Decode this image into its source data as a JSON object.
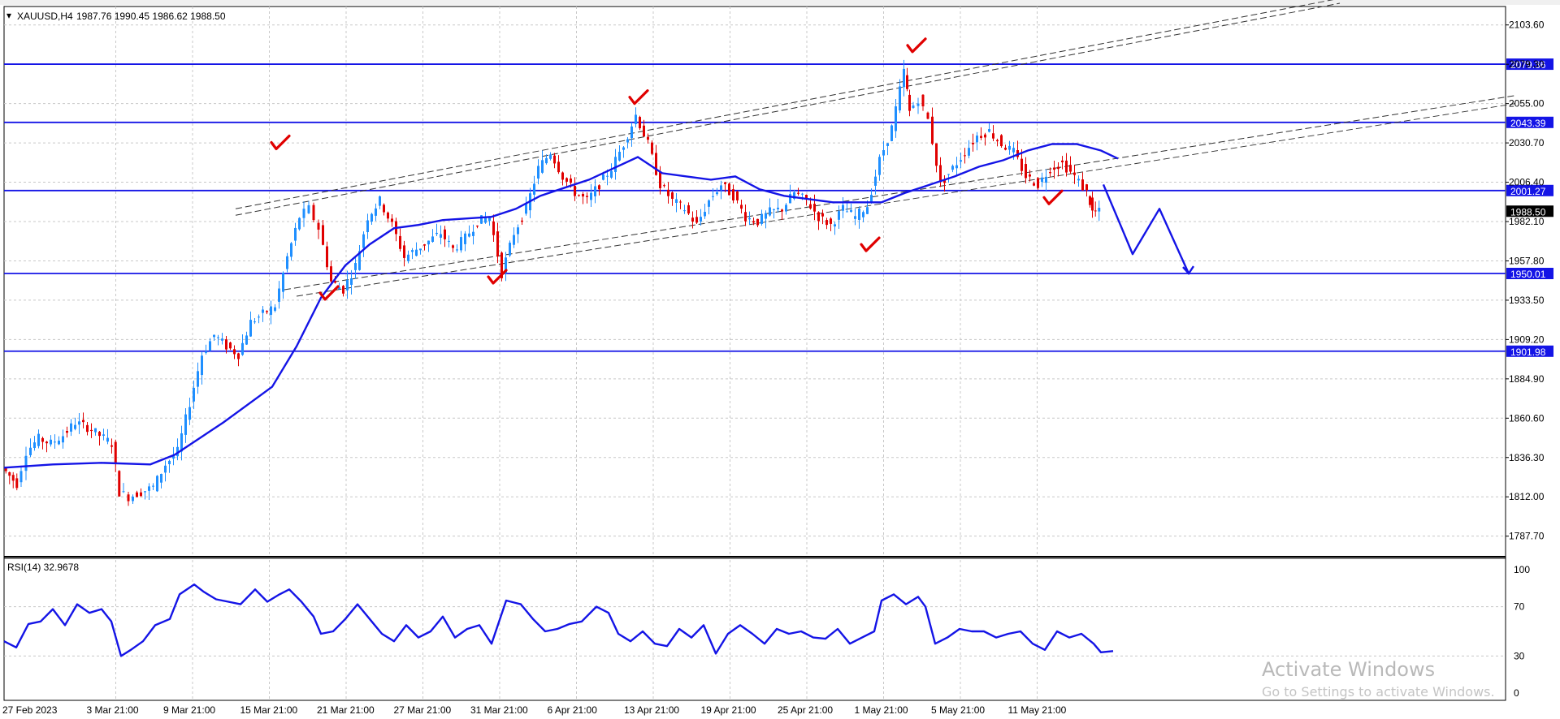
{
  "header": {
    "symbol": "XAUUSD,H4",
    "ohlc": "1987.76 1990.45 1986.62 1988.50"
  },
  "watermark": {
    "line1": "Activate Windows",
    "line2": "Go to Settings to activate Windows."
  },
  "chart_data": [
    {
      "type": "candlestick",
      "symbol": "XAUUSD",
      "timeframe": "H4",
      "ylim": [
        1775,
        2115
      ],
      "y_ticks": [
        "2103.60",
        "2079.30",
        "2055.00",
        "2030.70",
        "2006.40",
        "1982.10",
        "1957.80",
        "1933.50",
        "1909.20",
        "1884.90",
        "1860.60",
        "1836.30",
        "1812.00",
        "1787.70"
      ],
      "x_ticks": [
        "27 Feb 2023",
        "3 Mar 21:00",
        "9 Mar 21:00",
        "15 Mar 21:00",
        "21 Mar 21:00",
        "27 Mar 21:00",
        "31 Mar 21:00",
        "6 Apr 21:00",
        "13 Apr 21:00",
        "19 Apr 21:00",
        "25 Apr 21:00",
        "1 May 21:00",
        "5 May 21:00",
        "11 May 21:00"
      ],
      "current_price": "1988.50",
      "horizontal_levels": [
        {
          "value": 2079.36,
          "label": "2079.36"
        },
        {
          "value": 2043.39,
          "label": "2043.39"
        },
        {
          "value": 2001.27,
          "label": "2001.27"
        },
        {
          "value": 1950.01,
          "label": "1950.01"
        },
        {
          "value": 1901.98,
          "label": "1901.98"
        }
      ],
      "price_path": [
        [
          0,
          1830
        ],
        [
          0.6,
          1820
        ],
        [
          1,
          1840
        ],
        [
          1.5,
          1848
        ],
        [
          2,
          1845
        ],
        [
          2.5,
          1850
        ],
        [
          3,
          1858
        ],
        [
          3.5,
          1855
        ],
        [
          4,
          1850
        ],
        [
          4.5,
          1845
        ],
        [
          4.8,
          1815
        ],
        [
          5.2,
          1812
        ],
        [
          5.7,
          1815
        ],
        [
          6.2,
          1818
        ],
        [
          6.7,
          1832
        ],
        [
          7.2,
          1840
        ],
        [
          7.7,
          1870
        ],
        [
          8.2,
          1900
        ],
        [
          8.7,
          1912
        ],
        [
          9.2,
          1905
        ],
        [
          9.7,
          1900
        ],
        [
          10.2,
          1920
        ],
        [
          10.7,
          1925
        ],
        [
          11.2,
          1930
        ],
        [
          11.7,
          1960
        ],
        [
          12.2,
          1985
        ],
        [
          12.6,
          1990
        ],
        [
          13,
          1978
        ],
        [
          13.5,
          1945
        ],
        [
          14,
          1940
        ],
        [
          14.5,
          1955
        ],
        [
          15,
          1985
        ],
        [
          15.5,
          1995
        ],
        [
          16,
          1980
        ],
        [
          16.5,
          1960
        ],
        [
          17,
          1965
        ],
        [
          17.5,
          1970
        ],
        [
          18,
          1975
        ],
        [
          18.5,
          1965
        ],
        [
          19,
          1972
        ],
        [
          19.5,
          1982
        ],
        [
          20,
          1985
        ],
        [
          20.5,
          1950
        ],
        [
          21,
          1975
        ],
        [
          21.5,
          1990
        ],
        [
          22,
          2015
        ],
        [
          22.5,
          2025
        ],
        [
          23,
          2010
        ],
        [
          23.5,
          2000
        ],
        [
          24,
          1995
        ],
        [
          24.5,
          2005
        ],
        [
          25,
          2015
        ],
        [
          25.5,
          2030
        ],
        [
          26,
          2048
        ],
        [
          26.5,
          2030
        ],
        [
          27,
          2005
        ],
        [
          27.5,
          1995
        ],
        [
          28,
          1990
        ],
        [
          28.5,
          1980
        ],
        [
          29,
          1995
        ],
        [
          29.5,
          2005
        ],
        [
          30,
          1998
        ],
        [
          30.5,
          1985
        ],
        [
          31,
          1982
        ],
        [
          31.5,
          1988
        ],
        [
          32,
          1990
        ],
        [
          32.5,
          2000
        ],
        [
          33,
          1995
        ],
        [
          33.5,
          1985
        ],
        [
          34,
          1980
        ],
        [
          34.5,
          1990
        ],
        [
          35,
          1985
        ],
        [
          35.5,
          1992
        ],
        [
          36,
          2020
        ],
        [
          36.5,
          2040
        ],
        [
          37,
          2075
        ],
        [
          37.2,
          2050
        ],
        [
          37.6,
          2058
        ],
        [
          38,
          2045
        ],
        [
          38.5,
          2005
        ],
        [
          39,
          2015
        ],
        [
          39.5,
          2025
        ],
        [
          40,
          2035
        ],
        [
          40.5,
          2038
        ],
        [
          41,
          2030
        ],
        [
          41.5,
          2025
        ],
        [
          42,
          2010
        ],
        [
          42.5,
          2005
        ],
        [
          43,
          2015
        ],
        [
          43.5,
          2018
        ],
        [
          44,
          2010
        ],
        [
          44.5,
          2000
        ],
        [
          44.7,
          1988
        ],
        [
          45,
          1988
        ]
      ],
      "moving_average": [
        [
          0,
          1830
        ],
        [
          2,
          1832
        ],
        [
          4,
          1833
        ],
        [
          6,
          1832
        ],
        [
          7,
          1838
        ],
        [
          9,
          1858
        ],
        [
          11,
          1880
        ],
        [
          12,
          1905
        ],
        [
          13,
          1935
        ],
        [
          14,
          1955
        ],
        [
          15,
          1968
        ],
        [
          16,
          1978
        ],
        [
          17,
          1980
        ],
        [
          18,
          1983
        ],
        [
          19,
          1984
        ],
        [
          20,
          1985
        ],
        [
          21,
          1990
        ],
        [
          22,
          1998
        ],
        [
          23,
          2003
        ],
        [
          24,
          2008
        ],
        [
          25,
          2015
        ],
        [
          26,
          2022
        ],
        [
          27,
          2012
        ],
        [
          28,
          2010
        ],
        [
          29,
          2008
        ],
        [
          30,
          2010
        ],
        [
          31,
          2002
        ],
        [
          32,
          1998
        ],
        [
          33,
          1996
        ],
        [
          34,
          1994
        ],
        [
          35,
          1994
        ],
        [
          36,
          1994
        ],
        [
          37,
          2000
        ],
        [
          38,
          2005
        ],
        [
          39,
          2010
        ],
        [
          40,
          2016
        ],
        [
          41,
          2020
        ],
        [
          42,
          2026
        ],
        [
          43,
          2030
        ],
        [
          44,
          2030
        ],
        [
          45,
          2026
        ],
        [
          45.7,
          2021
        ]
      ],
      "forecast_path": [
        [
          45.1,
          2005
        ],
        [
          45.8,
          1980
        ],
        [
          46.3,
          1962
        ],
        [
          47.4,
          1990
        ],
        [
          48.6,
          1950
        ]
      ],
      "check_marks": [
        [
          11.3,
          2030
        ],
        [
          13.3,
          1937
        ],
        [
          26.0,
          2058
        ],
        [
          20.2,
          1947
        ],
        [
          37.4,
          2090
        ],
        [
          35.5,
          1967
        ],
        [
          43.0,
          1996
        ]
      ]
    },
    {
      "type": "line",
      "title": "RSI(14) 32.9678",
      "ylim": [
        0,
        100
      ],
      "y_ticks": [
        "100",
        "70",
        "30",
        "0"
      ],
      "series": [
        {
          "name": "RSI(14)",
          "values": [
            [
              0,
              42
            ],
            [
              0.5,
              37
            ],
            [
              1,
              56
            ],
            [
              1.5,
              58
            ],
            [
              2,
              68
            ],
            [
              2.5,
              55
            ],
            [
              3,
              72
            ],
            [
              3.5,
              65
            ],
            [
              4,
              68
            ],
            [
              4.4,
              58
            ],
            [
              4.8,
              30
            ],
            [
              5.2,
              35
            ],
            [
              5.7,
              42
            ],
            [
              6.2,
              55
            ],
            [
              6.8,
              60
            ],
            [
              7.2,
              80
            ],
            [
              7.8,
              88
            ],
            [
              8.2,
              82
            ],
            [
              8.7,
              76
            ],
            [
              9.2,
              74
            ],
            [
              9.7,
              72
            ],
            [
              10.3,
              84
            ],
            [
              10.8,
              74
            ],
            [
              11.3,
              80
            ],
            [
              11.7,
              84
            ],
            [
              12.2,
              74
            ],
            [
              12.7,
              62
            ],
            [
              13,
              48
            ],
            [
              13.5,
              50
            ],
            [
              14,
              60
            ],
            [
              14.5,
              72
            ],
            [
              15,
              60
            ],
            [
              15.5,
              48
            ],
            [
              16,
              42
            ],
            [
              16.5,
              55
            ],
            [
              17,
              45
            ],
            [
              17.5,
              50
            ],
            [
              18,
              62
            ],
            [
              18.5,
              45
            ],
            [
              19,
              52
            ],
            [
              19.5,
              55
            ],
            [
              20,
              40
            ],
            [
              20.6,
              75
            ],
            [
              21.2,
              72
            ],
            [
              21.7,
              60
            ],
            [
              22.2,
              50
            ],
            [
              22.7,
              52
            ],
            [
              23.2,
              56
            ],
            [
              23.7,
              58
            ],
            [
              24.3,
              70
            ],
            [
              24.8,
              65
            ],
            [
              25.2,
              48
            ],
            [
              25.7,
              42
            ],
            [
              26.2,
              50
            ],
            [
              26.7,
              40
            ],
            [
              27.2,
              38
            ],
            [
              27.7,
              52
            ],
            [
              28.2,
              45
            ],
            [
              28.7,
              55
            ],
            [
              29.2,
              32
            ],
            [
              29.7,
              48
            ],
            [
              30.2,
              55
            ],
            [
              30.7,
              48
            ],
            [
              31.2,
              40
            ],
            [
              31.7,
              52
            ],
            [
              32.2,
              48
            ],
            [
              32.7,
              50
            ],
            [
              33.2,
              45
            ],
            [
              33.7,
              44
            ],
            [
              34.2,
              52
            ],
            [
              34.7,
              40
            ],
            [
              35.2,
              45
            ],
            [
              35.7,
              50
            ],
            [
              36,
              75
            ],
            [
              36.5,
              80
            ],
            [
              37,
              72
            ],
            [
              37.5,
              78
            ],
            [
              37.8,
              70
            ],
            [
              38.2,
              40
            ],
            [
              38.7,
              45
            ],
            [
              39.2,
              52
            ],
            [
              39.7,
              50
            ],
            [
              40.2,
              50
            ],
            [
              40.7,
              45
            ],
            [
              41.2,
              48
            ],
            [
              41.7,
              50
            ],
            [
              42.2,
              40
            ],
            [
              42.7,
              35
            ],
            [
              43.2,
              50
            ],
            [
              43.7,
              45
            ],
            [
              44.2,
              48
            ],
            [
              44.7,
              40
            ],
            [
              45,
              33
            ],
            [
              45.5,
              34
            ]
          ]
        }
      ]
    }
  ]
}
